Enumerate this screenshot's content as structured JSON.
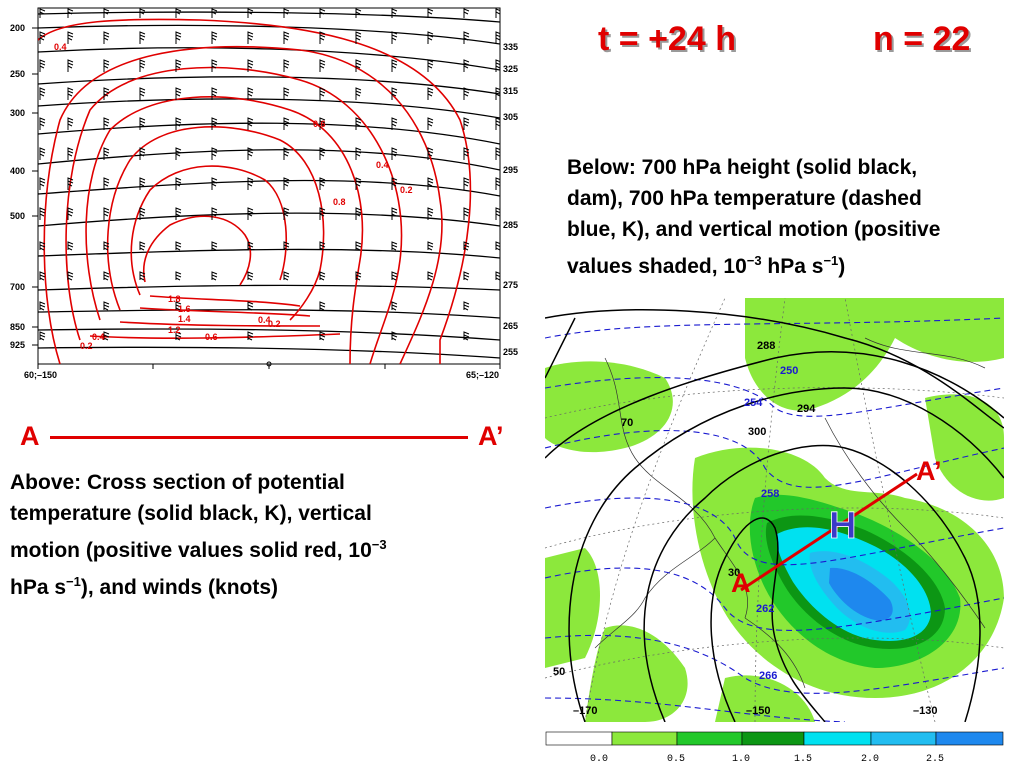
{
  "header": {
    "time_label": "t = +24 h",
    "member_label": "n = 22"
  },
  "below_caption": {
    "line1": "Below:  700 hPa height (solid black,",
    "line2": "dam), 700 hPa temperature (dashed",
    "line3": "blue, K), and vertical motion (positive",
    "line4_prefix": "values shaded, 10",
    "line4_exp": "−3",
    "line4_mid": " hPa s",
    "line4_exp2": "−1",
    "line4_suffix": ")"
  },
  "above_caption": {
    "line1": "Above:  Cross section of potential",
    "line2": "temperature (solid black, K), vertical",
    "line3_prefix": "motion (positive values solid red, 10",
    "line3_exp": "−3",
    "line4_prefix": "hPa s",
    "line4_exp": "−1",
    "line4_suffix": "), and winds (knots)"
  },
  "section_line": {
    "start_label": "A",
    "end_label": "A’"
  },
  "cross_section": {
    "pressure_labels": [
      "200",
      "250",
      "300",
      "400",
      "500",
      "700",
      "850",
      "925"
    ],
    "theta_labels": [
      "335",
      "325",
      "315",
      "305",
      "295",
      "285",
      "275",
      "265",
      "255"
    ],
    "left_endpoint": "60;–150",
    "right_endpoint": "65;–120",
    "vv_labels": [
      "0.4",
      "0.6",
      "0.4",
      "0.2",
      "0.8",
      "1.8",
      "1.6",
      "1.4",
      "1.2",
      "0.4",
      "0.2",
      "0.6",
      "0.2",
      "0.4"
    ]
  },
  "map": {
    "height_labels": [
      "288",
      "294",
      "300",
      "30"
    ],
    "temp_labels": [
      "250",
      "254",
      "258",
      "262",
      "266"
    ],
    "lon_labels": [
      "–170",
      "–150",
      "–130"
    ],
    "lat_labels": [
      "70",
      "50"
    ],
    "high_label": "H",
    "point_a": "A",
    "point_a_prime": "A’"
  },
  "colorbar": {
    "ticks": [
      "0.0",
      "0.5",
      "1.0",
      "1.5",
      "2.0",
      "2.5"
    ],
    "colors": [
      "#ffffff",
      "#8ce83c",
      "#22c82a",
      "#0c9614",
      "#00e1f0",
      "#22bdf0",
      "#1e88ee"
    ]
  },
  "colors": {
    "accent_red": "#e00000",
    "vv_red": "#e00000",
    "temp_blue": "#1a1ad0"
  }
}
